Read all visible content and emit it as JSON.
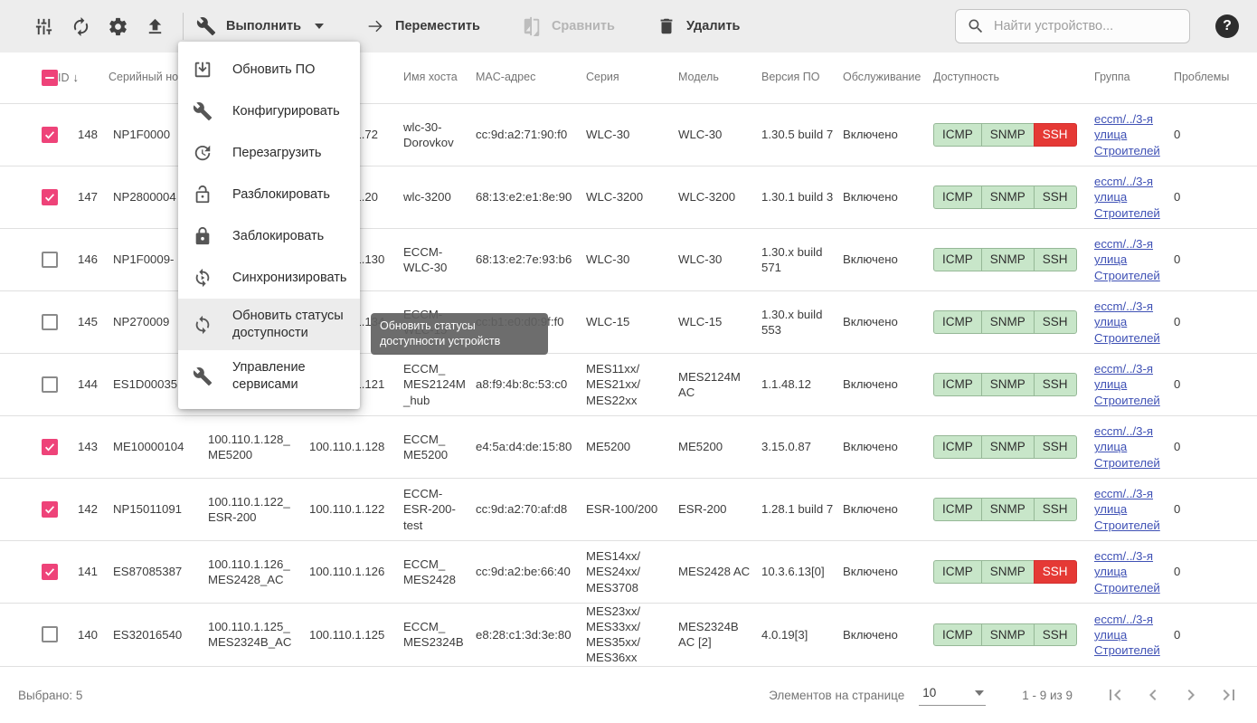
{
  "toolbar": {
    "execute_label": "Выполнить",
    "move_label": "Переместить",
    "compare_label": "Сравнить",
    "delete_label": "Удалить",
    "search_placeholder": "Найти устройство...",
    "help_label": "?",
    "icons": [
      "tune-icon",
      "refresh-icon",
      "settings-gear-icon",
      "upload-icon",
      "tools-icon",
      "arrow-right-icon",
      "compare-icon",
      "trash-icon",
      "search-icon",
      "help-icon"
    ]
  },
  "menu": {
    "items": [
      {
        "label": "Обновить ПО",
        "icon": "firmware-download-icon"
      },
      {
        "label": "Конфигурировать",
        "icon": "wrench-icon"
      },
      {
        "label": "Перезагрузить",
        "icon": "reboot-clock-icon"
      },
      {
        "label": "Разблокировать",
        "icon": "unlock-icon"
      },
      {
        "label": "Заблокировать",
        "icon": "lock-icon"
      },
      {
        "label": "Синхронизировать",
        "icon": "sync-play-icon"
      },
      {
        "label": "Обновить статусы доступности",
        "icon": "refresh-statuses-icon",
        "highlighted": true
      },
      {
        "label": "Управление сервисами",
        "icon": "services-wrench-icon"
      }
    ]
  },
  "tooltip": {
    "text": "Обновить статусы доступности устройств"
  },
  "table": {
    "columns": [
      "",
      "ID",
      "Серийный номер",
      "",
      "",
      "Имя хоста",
      "MAC-адрес",
      "Серия",
      "Модель",
      "Версия ПО",
      "Обслуживание",
      "Доступность",
      "Группа",
      "Проблемы"
    ],
    "sort": {
      "column": "ID",
      "direction": "desc"
    },
    "rows": [
      {
        "checked": true,
        "id": "148",
        "serial": "NP1F0000",
        "name": "",
        "ip": "100.110.1.72",
        "hostname": "wlc-30-Dorovkov",
        "mac": "cc:9d:a2:71:90:f0",
        "series": "WLC-30",
        "model": "WLC-30",
        "firmware": "1.30.5 build 7",
        "maintenance": "Включено",
        "availability": [
          {
            "label": "ICMP",
            "ok": true
          },
          {
            "label": "SNMP",
            "ok": true
          },
          {
            "label": "SSH",
            "ok": false
          }
        ],
        "group": "eccm/../3-я улица Строителей",
        "problems": "0"
      },
      {
        "checked": true,
        "id": "147",
        "serial": "NP2800004",
        "name": "",
        "ip": "100.110.1.20",
        "hostname": "wlc-3200",
        "mac": "68:13:e2:e1:8e:90",
        "series": "WLC-3200",
        "model": "WLC-3200",
        "firmware": "1.30.1 build 3",
        "maintenance": "Включено",
        "availability": [
          {
            "label": "ICMP",
            "ok": true
          },
          {
            "label": "SNMP",
            "ok": true
          },
          {
            "label": "SSH",
            "ok": true
          }
        ],
        "group": "eccm/../3-я улица Строителей",
        "problems": "0"
      },
      {
        "checked": false,
        "id": "146",
        "serial": "NP1F0009-",
        "name": "",
        "ip": "100.110.1.130",
        "hostname": "ECCM-WLC-30",
        "mac": "68:13:e2:7e:93:b6",
        "series": "WLC-30",
        "model": "WLC-30",
        "firmware": "1.30.x build 571",
        "maintenance": "Включено",
        "availability": [
          {
            "label": "ICMP",
            "ok": true
          },
          {
            "label": "SNMP",
            "ok": true
          },
          {
            "label": "SSH",
            "ok": true
          }
        ],
        "group": "eccm/../3-я улица Строителей",
        "problems": "0"
      },
      {
        "checked": false,
        "id": "145",
        "serial": "NP270009",
        "name": "",
        "ip": "100.110.1.134",
        "hostname": "ECCM-WLC-15",
        "mac": "cc:b1:e0:d0:9f:f0",
        "series": "WLC-15",
        "model": "WLC-15",
        "firmware": "1.30.x build 553",
        "maintenance": "Включено",
        "availability": [
          {
            "label": "ICMP",
            "ok": true
          },
          {
            "label": "SNMP",
            "ok": true
          },
          {
            "label": "SSH",
            "ok": true
          }
        ],
        "group": "eccm/../3-я улица Строителей",
        "problems": "0"
      },
      {
        "checked": false,
        "id": "144",
        "serial": "ES1D00035",
        "name": "",
        "ip": "100.110.1.121",
        "hostname": "ECCM_MES2124M_hub",
        "mac": "a8:f9:4b:8c:53:c0",
        "series": "MES11xx/MES21xx/MES22xx",
        "model": "MES2124M AC",
        "firmware": "1.1.48.12",
        "maintenance": "Включено",
        "availability": [
          {
            "label": "ICMP",
            "ok": true
          },
          {
            "label": "SNMP",
            "ok": true
          },
          {
            "label": "SSH",
            "ok": true
          }
        ],
        "group": "eccm/../3-я улица Строителей",
        "problems": "0"
      },
      {
        "checked": true,
        "id": "143",
        "serial": "ME10000104",
        "name": "100.110.1.128_ME5200",
        "ip": "100.110.1.128",
        "hostname": "ECCM_ME5200",
        "mac": "e4:5a:d4:de:15:80",
        "series": "ME5200",
        "model": "ME5200",
        "firmware": "3.15.0.87",
        "maintenance": "Включено",
        "availability": [
          {
            "label": "ICMP",
            "ok": true
          },
          {
            "label": "SNMP",
            "ok": true
          },
          {
            "label": "SSH",
            "ok": true
          }
        ],
        "group": "eccm/../3-я улица Строителей",
        "problems": "0"
      },
      {
        "checked": true,
        "id": "142",
        "serial": "NP15011091",
        "name": "100.110.1.122_ESR-200",
        "ip": "100.110.1.122",
        "hostname": "ECCM-ESR-200-test",
        "mac": "cc:9d:a2:70:af:d8",
        "series": "ESR-100/200",
        "model": "ESR-200",
        "firmware": "1.28.1 build 7",
        "maintenance": "Включено",
        "availability": [
          {
            "label": "ICMP",
            "ok": true
          },
          {
            "label": "SNMP",
            "ok": true
          },
          {
            "label": "SSH",
            "ok": true
          }
        ],
        "group": "eccm/../3-я улица Строителей",
        "problems": "0"
      },
      {
        "checked": true,
        "id": "141",
        "serial": "ES87085387",
        "name": "100.110.1.126_MES2428_AC",
        "ip": "100.110.1.126",
        "hostname": "ECCM_MES2428",
        "mac": "cc:9d:a2:be:66:40",
        "series": "MES14xx/MES24xx/MES3708",
        "model": "MES2428 AC",
        "firmware": "10.3.6.13[0]",
        "maintenance": "Включено",
        "availability": [
          {
            "label": "ICMP",
            "ok": true
          },
          {
            "label": "SNMP",
            "ok": true
          },
          {
            "label": "SSH",
            "ok": false
          }
        ],
        "group": "eccm/../3-я улица Строителей",
        "problems": "0"
      },
      {
        "checked": false,
        "id": "140",
        "serial": "ES32016540",
        "name": "100.110.1.125_MES2324B_AC",
        "ip": "100.110.1.125",
        "hostname": "ECCM_MES2324B",
        "mac": "e8:28:c1:3d:3e:80",
        "series": "MES23xx/MES33xx/MES35xx/MES36xx",
        "model": "MES2324B AC [2]",
        "firmware": "4.0.19[3]",
        "maintenance": "Включено",
        "availability": [
          {
            "label": "ICMP",
            "ok": true
          },
          {
            "label": "SNMP",
            "ok": true
          },
          {
            "label": "SSH",
            "ok": true
          }
        ],
        "group": "eccm/../3-я улица Строителей",
        "problems": "0"
      }
    ]
  },
  "footer": {
    "selected_label": "Выбрано: 5",
    "per_page_label": "Элементов на странице",
    "per_page_value": "10",
    "range_label": "1 - 9 из 9"
  },
  "colors": {
    "accent_pink": "#ee4379",
    "badge_ok_bg": "#c8e6c9",
    "badge_fail_bg": "#e53935",
    "link_blue": "#3f51b5",
    "toolbar_bg": "#ededed"
  }
}
